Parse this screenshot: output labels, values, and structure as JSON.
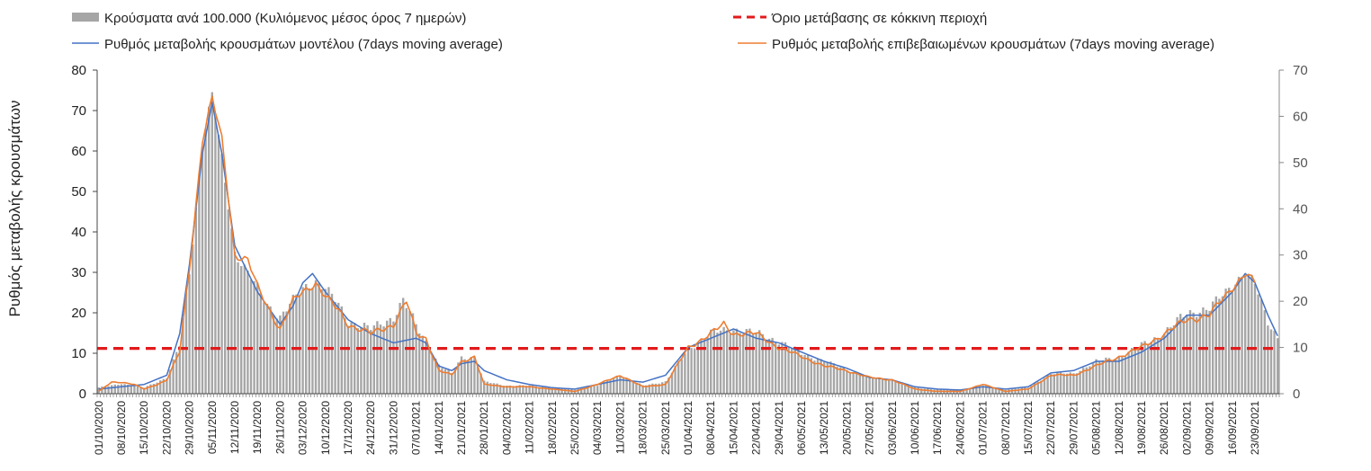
{
  "chart_data": {
    "type": "bar+line",
    "title": "",
    "ylabel": "Ρυθμός μεταβολής κρουσμάτων",
    "xlabel": "",
    "ylim_left": [
      0,
      80
    ],
    "ylim_right": [
      0,
      70
    ],
    "yticks_left": [
      0,
      10,
      20,
      30,
      40,
      50,
      60,
      70,
      80
    ],
    "yticks_right": [
      0,
      10,
      20,
      30,
      40,
      50,
      60,
      70
    ],
    "grid": false,
    "legend_position": "top",
    "x_start_date": "01/10/2020",
    "x_end_date": "30/09/2021",
    "x_tick_labels": [
      "01/10/2020",
      "08/10/2020",
      "15/10/2020",
      "22/10/2020",
      "29/10/2020",
      "05/11/2020",
      "12/11/2020",
      "19/11/2020",
      "26/11/2020",
      "03/12/2020",
      "10/12/2020",
      "17/12/2020",
      "24/12/2020",
      "31/12/2020",
      "07/01/2021",
      "14/01/2021",
      "21/01/2021",
      "28/01/2021",
      "04/02/2021",
      "11/02/2021",
      "18/02/2021",
      "25/02/2021",
      "04/03/2021",
      "11/03/2021",
      "18/03/2021",
      "25/03/2021",
      "01/04/2021",
      "08/04/2021",
      "15/04/2021",
      "22/04/2021",
      "29/04/2021",
      "06/05/2021",
      "13/05/2021",
      "20/05/2021",
      "27/05/2021",
      "03/06/2021",
      "10/06/2021",
      "17/06/2021",
      "24/06/2021",
      "01/07/2021",
      "08/07/2021",
      "15/07/2021",
      "22/07/2021",
      "29/07/2021",
      "05/08/2021",
      "12/08/2021",
      "19/08/2021",
      "26/08/2021",
      "02/09/2021",
      "09/09/2021",
      "16/09/2021",
      "23/09/2021"
    ],
    "legend": [
      {
        "name": "Κρούσματα ανά 100.000 (Κυλιόμενος μέσος όρος 7 ημερών)",
        "style": "bar",
        "color": "#a6a6a6"
      },
      {
        "name": "Όριο μετάβασης σε κόκκινη περιοχή",
        "style": "dashed",
        "color": "#e31a1c"
      },
      {
        "name": "Ρυθμός μεταβολής κρουσμάτων μοντέλου (7days moving average)",
        "style": "line",
        "color": "#4472c4"
      },
      {
        "name": "Ρυθμός μεταβολής επιβεβαιωμένων κρουσμάτων (7days moving average)",
        "style": "line",
        "color": "#ed7d31"
      }
    ],
    "series": [
      {
        "name": "Κρούσματα ανά 100.000 (Κυλιόμενος μέσος όρος 7 ημερών)",
        "axis": "left",
        "type": "bar",
        "color": "#a6a6a6",
        "keypoints": [
          [
            "01/10/2020",
            1.5
          ],
          [
            "08/10/2020",
            2.5
          ],
          [
            "15/10/2020",
            1.5
          ],
          [
            "22/10/2020",
            4
          ],
          [
            "26/10/2020",
            12
          ],
          [
            "29/10/2020",
            30
          ],
          [
            "02/11/2020",
            62
          ],
          [
            "05/11/2020",
            74
          ],
          [
            "08/11/2020",
            58
          ],
          [
            "12/11/2020",
            35
          ],
          [
            "16/11/2020",
            30
          ],
          [
            "19/11/2020",
            26
          ],
          [
            "22/11/2020",
            22
          ],
          [
            "26/11/2020",
            19
          ],
          [
            "03/12/2020",
            26
          ],
          [
            "07/12/2020",
            28
          ],
          [
            "10/12/2020",
            26
          ],
          [
            "14/12/2020",
            22
          ],
          [
            "17/12/2020",
            18
          ],
          [
            "24/12/2020",
            16
          ],
          [
            "31/12/2020",
            19
          ],
          [
            "03/01/2021",
            23
          ],
          [
            "07/01/2021",
            17
          ],
          [
            "10/01/2021",
            13
          ],
          [
            "14/01/2021",
            7
          ],
          [
            "18/01/2021",
            5
          ],
          [
            "21/01/2021",
            9
          ],
          [
            "25/01/2021",
            9
          ],
          [
            "28/01/2021",
            3
          ],
          [
            "04/02/2021",
            2
          ],
          [
            "11/02/2021",
            2
          ],
          [
            "18/02/2021",
            1.5
          ],
          [
            "25/02/2021",
            1
          ],
          [
            "04/03/2021",
            2
          ],
          [
            "11/03/2021",
            4.5
          ],
          [
            "18/03/2021",
            2
          ],
          [
            "25/03/2021",
            3
          ],
          [
            "01/04/2021",
            11
          ],
          [
            "08/04/2021",
            15
          ],
          [
            "15/04/2021",
            16
          ],
          [
            "22/04/2021",
            15
          ],
          [
            "29/04/2021",
            13
          ],
          [
            "06/05/2021",
            10
          ],
          [
            "13/05/2021",
            8
          ],
          [
            "20/05/2021",
            6
          ],
          [
            "27/05/2021",
            4
          ],
          [
            "03/06/2021",
            3.5
          ],
          [
            "10/06/2021",
            1.5
          ],
          [
            "17/06/2021",
            1
          ],
          [
            "24/06/2021",
            1
          ],
          [
            "01/07/2021",
            2
          ],
          [
            "08/07/2021",
            1
          ],
          [
            "15/07/2021",
            1.5
          ],
          [
            "22/07/2021",
            5
          ],
          [
            "29/07/2021",
            5
          ],
          [
            "05/08/2021",
            8
          ],
          [
            "12/08/2021",
            9
          ],
          [
            "19/08/2021",
            12
          ],
          [
            "26/08/2021",
            15
          ],
          [
            "02/09/2021",
            20
          ],
          [
            "09/09/2021",
            21
          ],
          [
            "16/09/2021",
            27
          ],
          [
            "20/09/2021",
            30
          ],
          [
            "23/09/2021",
            27
          ],
          [
            "27/09/2021",
            18
          ],
          [
            "30/09/2021",
            14
          ]
        ]
      },
      {
        "name": "Ρυθμός μεταβολής κρουσμάτων μοντέλου (7days moving average)",
        "axis": "right",
        "type": "line",
        "color": "#4472c4",
        "keypoints": [
          [
            "01/10/2020",
            1
          ],
          [
            "08/10/2020",
            1.5
          ],
          [
            "15/10/2020",
            2
          ],
          [
            "22/10/2020",
            4
          ],
          [
            "26/10/2020",
            13
          ],
          [
            "29/10/2020",
            28
          ],
          [
            "02/11/2020",
            52
          ],
          [
            "05/11/2020",
            63
          ],
          [
            "08/11/2020",
            52
          ],
          [
            "12/11/2020",
            32
          ],
          [
            "19/11/2020",
            22
          ],
          [
            "26/11/2020",
            15
          ],
          [
            "30/11/2020",
            19
          ],
          [
            "03/12/2020",
            24
          ],
          [
            "06/12/2020",
            26
          ],
          [
            "10/12/2020",
            22
          ],
          [
            "17/12/2020",
            16
          ],
          [
            "24/12/2020",
            13
          ],
          [
            "31/12/2020",
            11
          ],
          [
            "07/01/2021",
            12
          ],
          [
            "10/01/2021",
            11
          ],
          [
            "14/01/2021",
            6
          ],
          [
            "18/01/2021",
            5
          ],
          [
            "21/01/2021",
            6.5
          ],
          [
            "25/01/2021",
            7
          ],
          [
            "28/01/2021",
            5
          ],
          [
            "04/02/2021",
            3
          ],
          [
            "11/02/2021",
            2
          ],
          [
            "18/02/2021",
            1.3
          ],
          [
            "25/02/2021",
            1
          ],
          [
            "04/03/2021",
            2
          ],
          [
            "11/03/2021",
            3
          ],
          [
            "18/03/2021",
            2.5
          ],
          [
            "25/03/2021",
            4
          ],
          [
            "01/04/2021",
            10
          ],
          [
            "08/04/2021",
            12
          ],
          [
            "15/04/2021",
            14
          ],
          [
            "22/04/2021",
            12
          ],
          [
            "29/04/2021",
            11
          ],
          [
            "06/05/2021",
            9
          ],
          [
            "13/05/2021",
            7
          ],
          [
            "20/05/2021",
            5.5
          ],
          [
            "27/05/2021",
            3.5
          ],
          [
            "03/06/2021",
            3
          ],
          [
            "10/06/2021",
            1.5
          ],
          [
            "17/06/2021",
            1
          ],
          [
            "24/06/2021",
            0.8
          ],
          [
            "01/07/2021",
            1.5
          ],
          [
            "08/07/2021",
            1
          ],
          [
            "15/07/2021",
            1.5
          ],
          [
            "22/07/2021",
            4.5
          ],
          [
            "29/07/2021",
            5
          ],
          [
            "05/08/2021",
            7
          ],
          [
            "12/08/2021",
            7
          ],
          [
            "19/08/2021",
            9
          ],
          [
            "26/08/2021",
            12
          ],
          [
            "02/09/2021",
            17
          ],
          [
            "09/09/2021",
            17
          ],
          [
            "16/09/2021",
            22
          ],
          [
            "20/09/2021",
            26
          ],
          [
            "23/09/2021",
            24
          ],
          [
            "27/09/2021",
            17
          ],
          [
            "30/09/2021",
            12.5
          ]
        ]
      },
      {
        "name": "Ρυθμός μεταβολής επιβεβαιωμένων κρουσμάτων (7days moving average)",
        "axis": "right",
        "type": "line",
        "color": "#ed7d31",
        "keypoints": [
          [
            "01/10/2020",
            0.5
          ],
          [
            "05/10/2020",
            2.5
          ],
          [
            "08/10/2020",
            2.5
          ],
          [
            "12/10/2020",
            2
          ],
          [
            "15/10/2020",
            1
          ],
          [
            "19/10/2020",
            2
          ],
          [
            "22/10/2020",
            3
          ],
          [
            "26/10/2020",
            9
          ],
          [
            "29/10/2020",
            27
          ],
          [
            "02/11/2020",
            55
          ],
          [
            "05/11/2020",
            64
          ],
          [
            "08/11/2020",
            55
          ],
          [
            "12/11/2020",
            30
          ],
          [
            "16/11/2020",
            29
          ],
          [
            "19/11/2020",
            23
          ],
          [
            "22/11/2020",
            19
          ],
          [
            "26/11/2020",
            14
          ],
          [
            "30/11/2020",
            20
          ],
          [
            "03/12/2020",
            22
          ],
          [
            "07/12/2020",
            24
          ],
          [
            "10/12/2020",
            21
          ],
          [
            "14/12/2020",
            18
          ],
          [
            "17/12/2020",
            15
          ],
          [
            "24/12/2020",
            13
          ],
          [
            "31/12/2020",
            15
          ],
          [
            "04/01/2021",
            20
          ],
          [
            "07/01/2021",
            13
          ],
          [
            "10/01/2021",
            12
          ],
          [
            "14/01/2021",
            5
          ],
          [
            "18/01/2021",
            4
          ],
          [
            "21/01/2021",
            7
          ],
          [
            "25/01/2021",
            8
          ],
          [
            "28/01/2021",
            2
          ],
          [
            "04/02/2021",
            1.5
          ],
          [
            "11/02/2021",
            1.5
          ],
          [
            "18/02/2021",
            1
          ],
          [
            "25/02/2021",
            0.5
          ],
          [
            "04/03/2021",
            2
          ],
          [
            "11/03/2021",
            4
          ],
          [
            "18/03/2021",
            1.5
          ],
          [
            "25/03/2021",
            2
          ],
          [
            "01/04/2021",
            10
          ],
          [
            "08/04/2021",
            13
          ],
          [
            "12/04/2021",
            15
          ],
          [
            "15/04/2021",
            13
          ],
          [
            "22/04/2021",
            13
          ],
          [
            "29/04/2021",
            10
          ],
          [
            "06/05/2021",
            8
          ],
          [
            "13/05/2021",
            6
          ],
          [
            "20/05/2021",
            5
          ],
          [
            "27/05/2021",
            3.5
          ],
          [
            "03/06/2021",
            3
          ],
          [
            "10/06/2021",
            1
          ],
          [
            "17/06/2021",
            0.5
          ],
          [
            "24/06/2021",
            0.5
          ],
          [
            "01/07/2021",
            2
          ],
          [
            "08/07/2021",
            0.5
          ],
          [
            "15/07/2021",
            1
          ],
          [
            "22/07/2021",
            4
          ],
          [
            "29/07/2021",
            4
          ],
          [
            "05/08/2021",
            6
          ],
          [
            "12/08/2021",
            8
          ],
          [
            "19/08/2021",
            10
          ],
          [
            "26/08/2021",
            13
          ],
          [
            "02/09/2021",
            16
          ],
          [
            "09/09/2021",
            17
          ],
          [
            "16/09/2021",
            23
          ],
          [
            "20/09/2021",
            26
          ],
          [
            "23/09/2021",
            24
          ]
        ]
      },
      {
        "name": "Όριο μετάβασης σε κόκκινη περιοχή",
        "axis": "left",
        "type": "hline",
        "color": "#e31a1c",
        "value": 11.2
      }
    ]
  }
}
